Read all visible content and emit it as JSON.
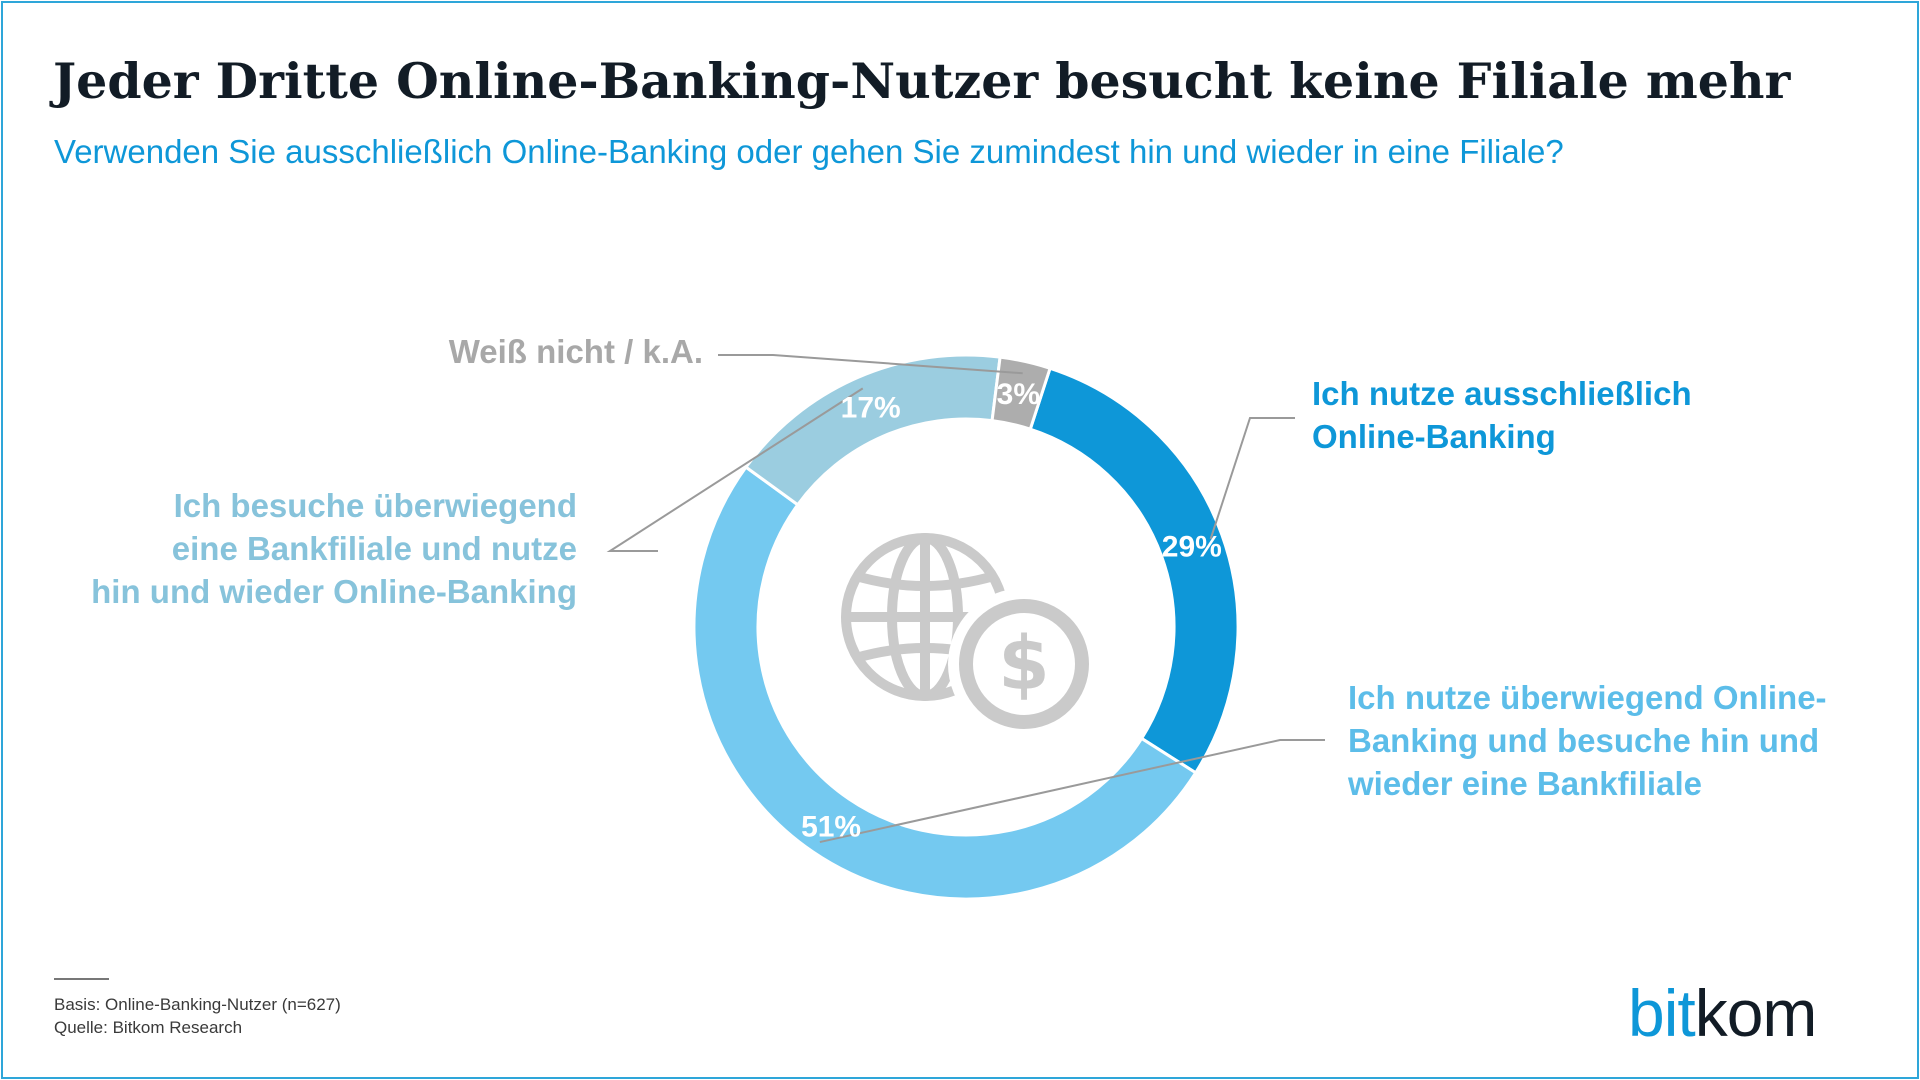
{
  "header": {
    "title": "Jeder Dritte Online-Banking-Nutzer besucht keine Filiale mehr",
    "subtitle": "Verwenden Sie ausschließlich Online-Banking oder gehen Sie zumindest hin und wieder in eine Filiale?"
  },
  "chart_data": {
    "type": "pie",
    "variant": "donut",
    "title": "Jeder Dritte Online-Banking-Nutzer besucht keine Filiale mehr",
    "subtitle": "Verwenden Sie ausschließlich Online-Banking oder gehen Sie zumindest hin und wieder in eine Filiale?",
    "slices": [
      {
        "label": "Ich nutze ausschließlich Online-Banking",
        "value": 29,
        "value_label": "29%",
        "color": "#0e97d8",
        "label_color": "#0e97d8"
      },
      {
        "label": "Ich nutze überwiegend Online-Banking und besuche hin und wieder eine Bankfiliale",
        "value": 51,
        "value_label": "51%",
        "color": "#74c9f0",
        "label_color": "#5cbde9"
      },
      {
        "label": "Ich besuche überwiegend eine Bankfiliale und nutze hin und wieder Online-Banking",
        "value": 17,
        "value_label": "17%",
        "color": "#9bcde0",
        "label_color": "#87c3db"
      },
      {
        "label": "Weiß nicht / k.A.",
        "value": 3,
        "value_label": "3%",
        "color": "#adadad",
        "label_color": "#a8a8a8"
      }
    ],
    "label_lines": [
      "Ich nutze ausschließlich\nOnline-Banking",
      "Ich nutze überwiegend Online-\nBanking und besuche hin und\nwieder eine Bankfiliale",
      "Ich besuche überwiegend\neine Bankfiliale und nutze\nhin und wieder Online-Banking",
      "Weiß nicht / k.A."
    ],
    "start_angle_deg": 18,
    "direction": "clockwise",
    "center_icon": "globe-dollar-icon",
    "icon_color": "#cacaca",
    "leader_line_color": "#9a9a9a"
  },
  "footer": {
    "basis": "Basis: Online-Banking-Nutzer (n=627)",
    "source": "Quelle: Bitkom Research"
  },
  "logo": {
    "part1": "bit",
    "part2": "kom",
    "color1": "#0e97d8",
    "color2": "#121c26"
  }
}
